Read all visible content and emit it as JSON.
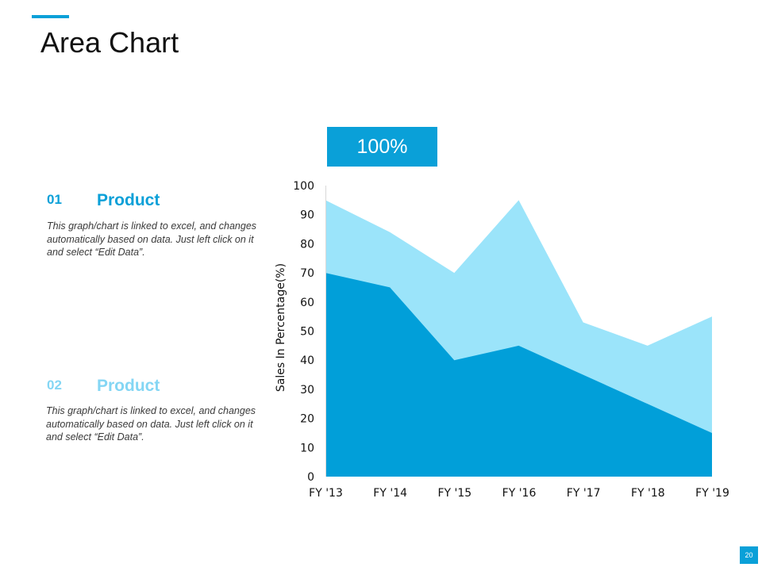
{
  "slide": {
    "title": "Area Chart",
    "accent_color": "#0aa0d8",
    "page_number": "20"
  },
  "items": [
    {
      "number": "01",
      "heading": "Product",
      "description": "This graph/chart is linked to excel, and changes automatically based on data. Just left click on it and select “Edit Data”.",
      "color": "#0aa0d8"
    },
    {
      "number": "02",
      "heading": "Product",
      "description": "This graph/chart is linked to excel, and changes automatically based on data. Just left click on it and select “Edit Data”.",
      "color": "#84d6f4"
    }
  ],
  "callout": {
    "label": "100%"
  },
  "chart_data": {
    "type": "area",
    "categories": [
      "FY '13",
      "FY '14",
      "FY '15",
      "FY '16",
      "FY '17",
      "FY '18",
      "FY '19"
    ],
    "series": [
      {
        "name": "Product 02",
        "values": [
          95,
          84,
          70,
          95,
          53,
          45,
          55
        ],
        "color": "#9be4fa"
      },
      {
        "name": "Product 01",
        "values": [
          70,
          65,
          40,
          45,
          35,
          25,
          15
        ],
        "color": "#019fd9"
      }
    ],
    "ylabel": "Sales In Percentage(%)",
    "xlabel": "",
    "ylim": [
      0,
      100
    ],
    "yticks": [
      0,
      10,
      20,
      30,
      40,
      50,
      60,
      70,
      80,
      90,
      100
    ],
    "grid": false
  }
}
